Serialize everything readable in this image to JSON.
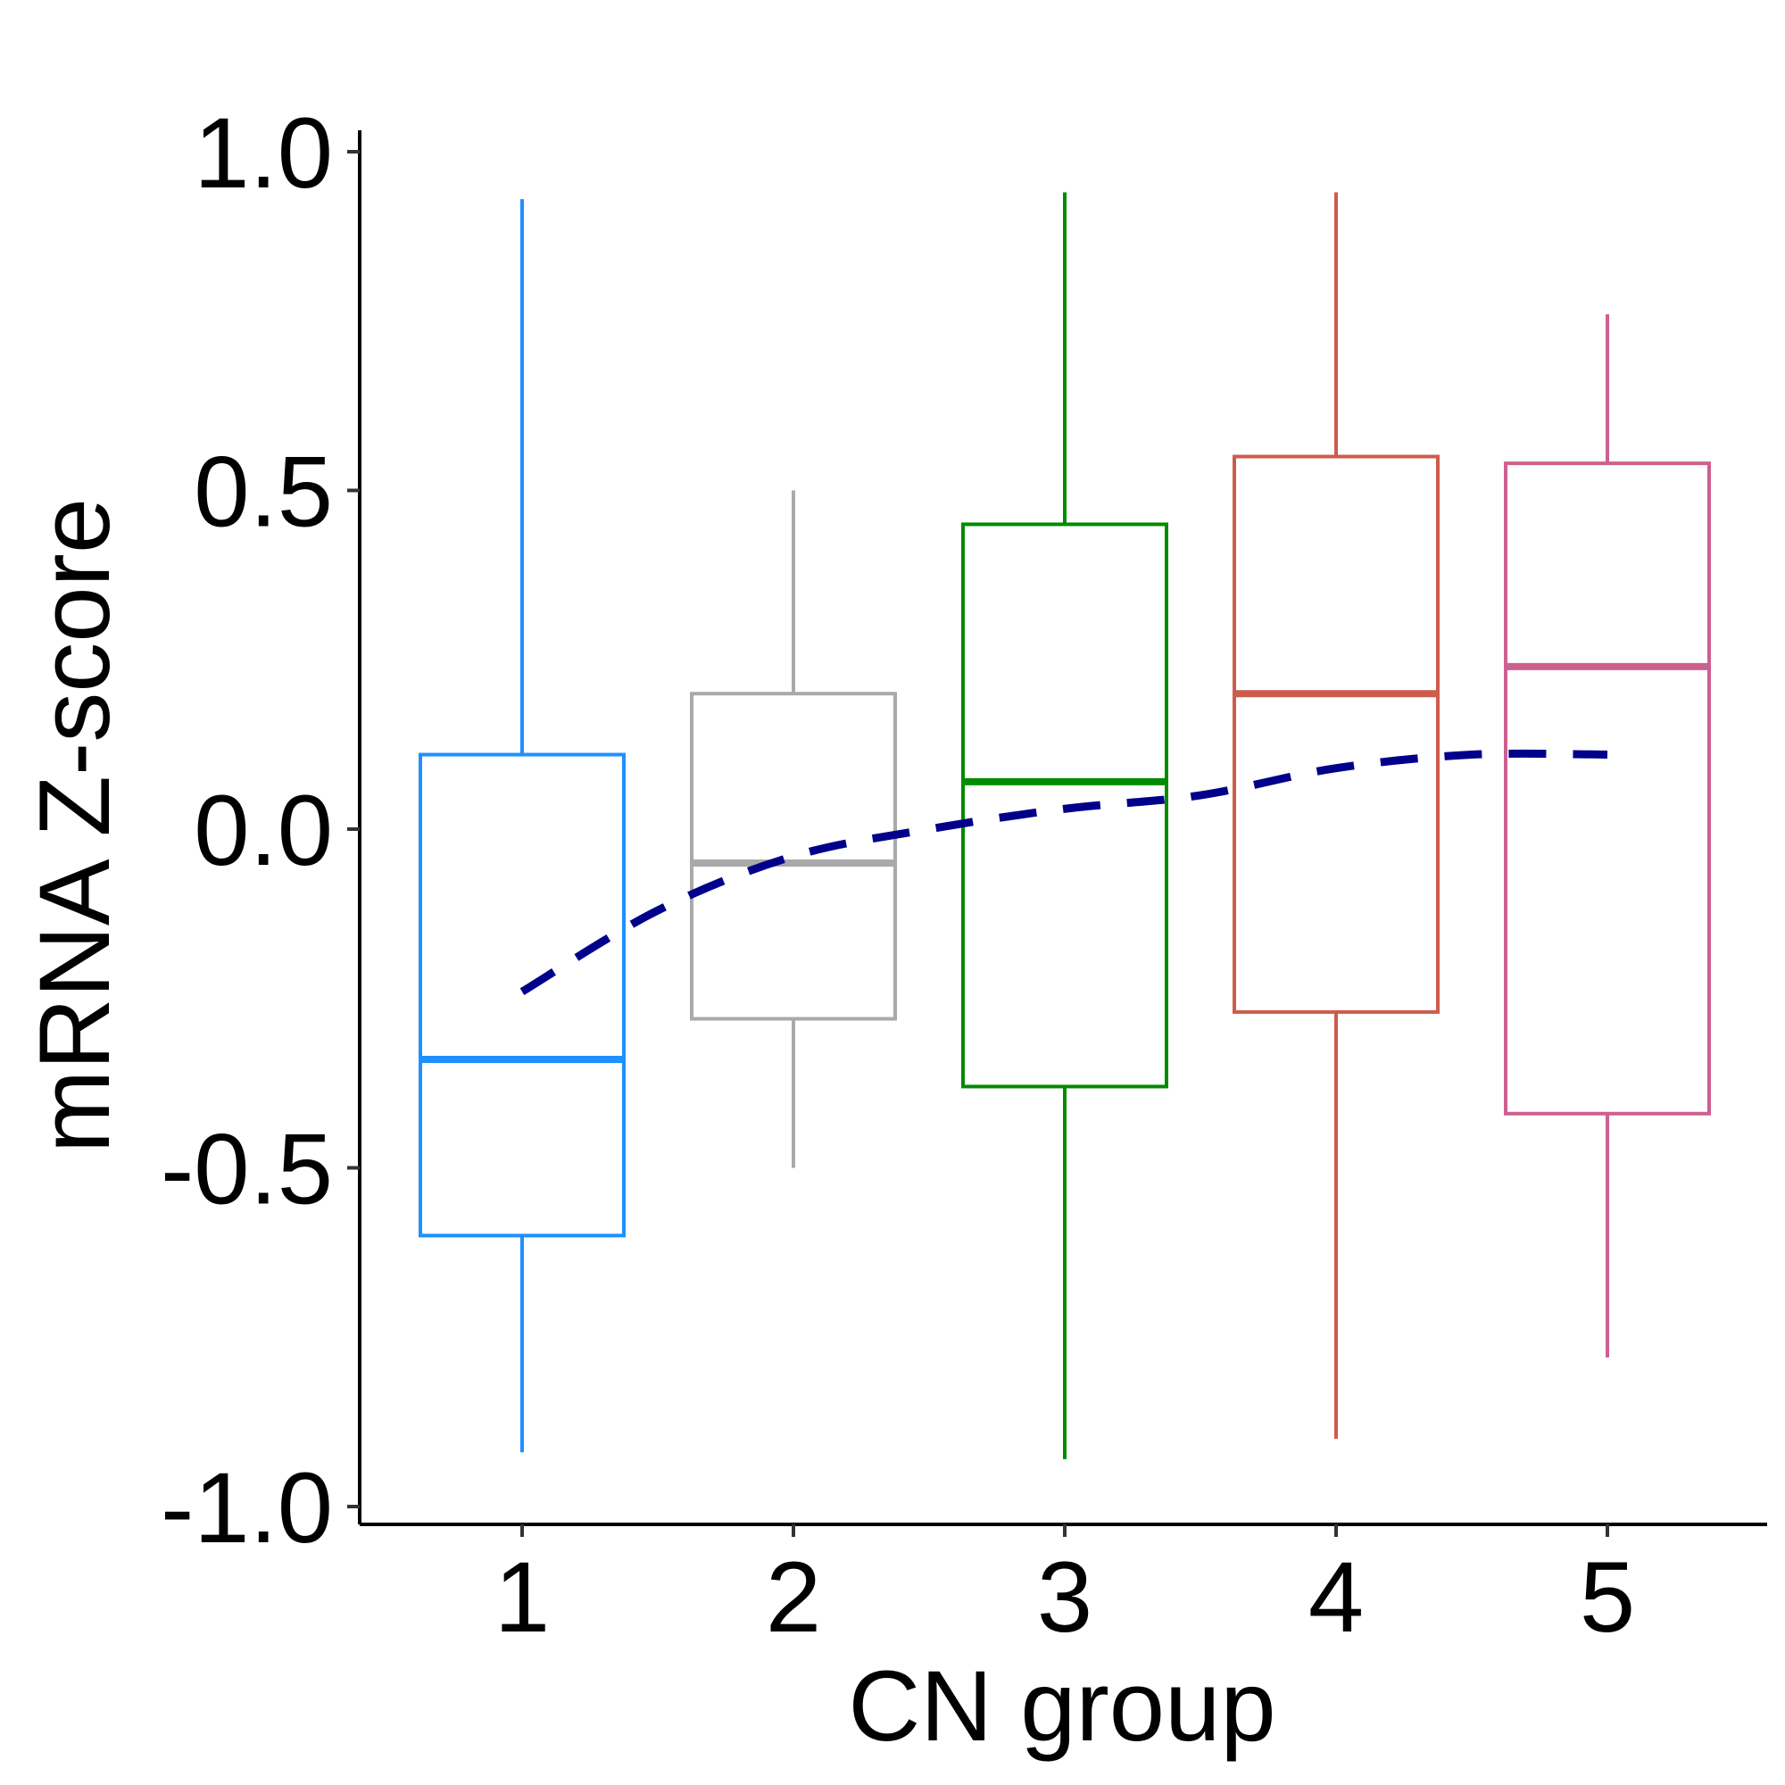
{
  "chart_data": {
    "type": "boxplot",
    "xlabel": "CN group",
    "ylabel": "mRNA Z-score",
    "ylim": [
      -1.0,
      1.0
    ],
    "yticks": [
      "-1.0",
      "-0.5",
      "0.0",
      "0.5",
      "1.0"
    ],
    "grid": false,
    "legend": "none",
    "categories": [
      "1",
      "2",
      "3",
      "4",
      "5"
    ],
    "boxes": [
      {
        "group": "1",
        "color": "#1E90FF",
        "whisker_low": -0.92,
        "q1": -0.6,
        "median": -0.34,
        "q3": 0.11,
        "whisker_high": 0.93
      },
      {
        "group": "2",
        "color": "#A9A9A9",
        "whisker_low": -0.5,
        "q1": -0.28,
        "median": -0.05,
        "q3": 0.2,
        "whisker_high": 0.5
      },
      {
        "group": "3",
        "color": "#008B00",
        "whisker_low": -0.93,
        "q1": -0.38,
        "median": 0.07,
        "q3": 0.45,
        "whisker_high": 0.94
      },
      {
        "group": "4",
        "color": "#CD5C4C",
        "whisker_low": -0.9,
        "q1": -0.27,
        "median": 0.2,
        "q3": 0.55,
        "whisker_high": 0.94
      },
      {
        "group": "5",
        "color": "#CD6090",
        "whisker_low": -0.78,
        "q1": -0.42,
        "median": 0.24,
        "q3": 0.54,
        "whisker_high": 0.76
      }
    ],
    "trend_line": {
      "color": "#00008B",
      "style": "dashed",
      "x": [
        1,
        1.5,
        2,
        2.5,
        3,
        3.5,
        4,
        4.5,
        5
      ],
      "y": [
        -0.24,
        -0.12,
        -0.04,
        0.0,
        0.03,
        0.05,
        0.09,
        0.11,
        0.11
      ]
    }
  }
}
